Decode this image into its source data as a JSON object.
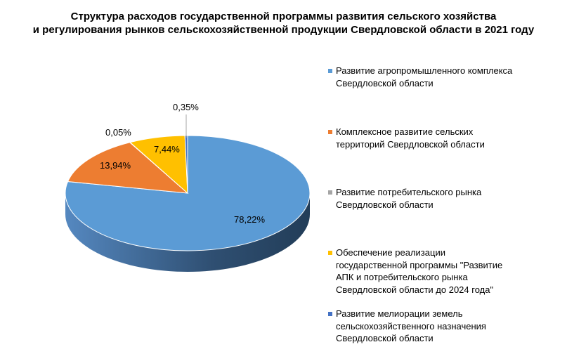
{
  "chart_data": {
    "type": "pie",
    "title_lines": [
      "Структура расходов государственной программы развития сельского хозяйства",
      "и регулирования рынков сельскохозяйственной продукции Свердловской области в 2021 году"
    ],
    "legend_position": "right",
    "slices": [
      {
        "name": "Развитие агропромышленного комплекса Свердловской области",
        "value": 78.22,
        "label": "78,22%",
        "color": "#5B9BD5"
      },
      {
        "name": "Комплексное развитие сельских территорий Свердловской области",
        "value": 13.94,
        "label": "13,94%",
        "color": "#ED7D31"
      },
      {
        "name": "Развитие потребительского рынка Свердловской области",
        "value": 0.05,
        "label": "0,05%",
        "color": "#A5A5A5"
      },
      {
        "name": "Обеспечение реализации государственной программы \"Развитие АПК и потребительского рынка Свердловской области до 2024 года\"",
        "value": 7.44,
        "label": "7,44%",
        "color": "#FFC000"
      },
      {
        "name": "Развитие мелиорации земель сельскохозяйственного назначения Свердловской области",
        "value": 0.35,
        "label": "0,35%",
        "color": "#4472C4"
      }
    ]
  }
}
